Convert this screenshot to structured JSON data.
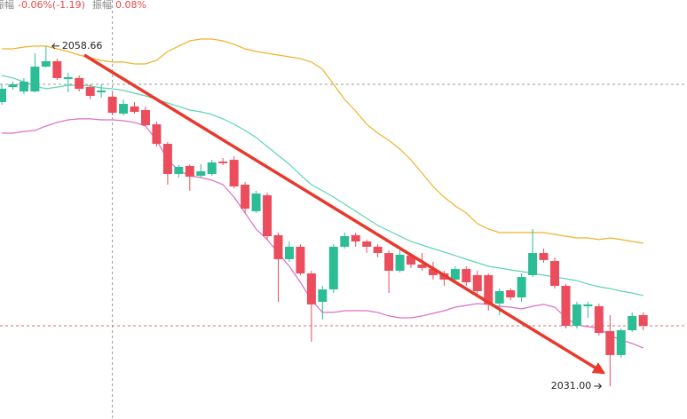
{
  "chart_data": {
    "type": "candlestick",
    "header": [
      {
        "name": "振幅",
        "value": "-0.06%(-1.19)"
      },
      {
        "name": "振幅",
        "value": "0.08%"
      }
    ],
    "ylim": [
      2028.33,
      2062.41
    ],
    "up_color": "#2dbd96",
    "down_color": "#ec4d5d",
    "open": [
      2054.11,
      2055.33,
      2054.97,
      2054.97,
      2056.99,
      2057.43,
      2055.98,
      2056.06,
      2055.33,
      2054.9,
      2054.54,
      2053.17,
      2053.75,
      2053.46,
      2052.3,
      2050.71,
      2048.26,
      2048.91,
      2048.11,
      2048.26,
      2049.27,
      2049.41,
      2047.39,
      2045.23,
      2046.53,
      2043.28,
      2041.33,
      2042.34,
      2040.17,
      2037.86,
      2038.87,
      2042.34,
      2043.28,
      2042.77,
      2042.34,
      2041.83,
      2040.39,
      2041.62,
      2040.89,
      2040.53,
      2040.17,
      2039.67,
      2040.53,
      2040.03,
      2040.03,
      2037.72,
      2038.8,
      2038.22,
      2040.03,
      2041.83,
      2041.18,
      2039.16,
      2035.91,
      2037.5,
      2037.5,
      2035.48,
      2033.53,
      2035.55,
      2036.78
    ],
    "high": [
      2055.55,
      2055.77,
      2056.06,
      2058.08,
      2058.66,
      2057.64,
      2056.49,
      2056.27,
      2055.55,
      2055.55,
      2054.9,
      2054.32,
      2054.11,
      2053.75,
      2052.52,
      2050.86,
      2048.98,
      2049.05,
      2049.05,
      2049.41,
      2049.56,
      2049.7,
      2047.61,
      2046.89,
      2046.74,
      2043.49,
      2042.77,
      2042.55,
      2040.39,
      2039.16,
      2042.55,
      2043.49,
      2043.49,
      2042.92,
      2042.55,
      2042.05,
      2042.05,
      2041.83,
      2041.83,
      2041.11,
      2040.39,
      2040.75,
      2040.75,
      2040.39,
      2040.17,
      2038.94,
      2038.94,
      2040.17,
      2043.78,
      2042.19,
      2041.47,
      2039.31,
      2037.86,
      2037.86,
      2037.72,
      2036.78,
      2035.7,
      2037.0,
      2037.0
    ],
    "low": [
      2053.89,
      2055.12,
      2054.76,
      2054.9,
      2056.92,
      2055.91,
      2054.9,
      2054.97,
      2054.32,
      2054.47,
      2053.02,
      2053.02,
      2053.17,
      2052.09,
      2050.5,
      2047.39,
      2047.97,
      2046.89,
      2047.97,
      2048.11,
      2048.98,
      2047.1,
      2045.08,
      2045.08,
      2042.92,
      2037.86,
      2041.11,
      2040.03,
      2034.61,
      2036.42,
      2038.58,
      2042.19,
      2042.34,
      2041.83,
      2041.47,
      2038.58,
      2040.24,
      2040.61,
      2040.39,
      2039.67,
      2039.16,
      2039.45,
      2039.16,
      2038.44,
      2037.14,
      2036.78,
      2038.01,
      2037.86,
      2039.88,
      2041.04,
      2038.94,
      2035.7,
      2035.7,
      2036.56,
      2035.12,
      2031.0,
      2033.31,
      2035.41,
      2035.55
    ],
    "close": [
      2055.19,
      2055.55,
      2055.77,
      2056.99,
      2057.43,
      2056.06,
      2056.13,
      2055.19,
      2054.61,
      2055.05,
      2053.24,
      2053.96,
      2053.31,
      2052.23,
      2050.71,
      2048.26,
      2048.84,
      2048.04,
      2048.48,
      2049.2,
      2049.13,
      2047.25,
      2045.44,
      2046.67,
      2043.2,
      2041.33,
      2042.34,
      2040.17,
      2037.65,
      2038.87,
      2042.34,
      2043.2,
      2042.77,
      2042.34,
      2041.83,
      2040.39,
      2041.69,
      2040.89,
      2040.61,
      2040.03,
      2039.67,
      2040.53,
      2039.45,
      2038.73,
      2037.65,
      2038.73,
      2038.22,
      2039.88,
      2041.83,
      2041.26,
      2039.16,
      2035.91,
      2037.65,
      2037.65,
      2035.33,
      2033.53,
      2035.55,
      2036.71,
      2035.91
    ],
    "lines": [
      {
        "color": "#f0b22a",
        "values": [
          2058.44,
          2058.44,
          2058.58,
          2058.66,
          2058.66,
          2058.44,
          2058.22,
          2057.93,
          2057.72,
          2057.5,
          2057.36,
          2057.36,
          2057.21,
          2057.21,
          2057.5,
          2058.22,
          2058.66,
          2059.09,
          2059.23,
          2059.23,
          2059.09,
          2058.8,
          2058.44,
          2058.22,
          2058.08,
          2057.93,
          2057.79,
          2057.64,
          2057.36,
          2056.78,
          2055.55,
          2054.32,
          2053.38,
          2052.3,
          2051.58,
          2051.0,
          2050.28,
          2049.41,
          2048.33,
          2047.25,
          2046.38,
          2045.66,
          2045.08,
          2044.22,
          2043.78,
          2043.49,
          2043.49,
          2043.49,
          2043.49,
          2043.49,
          2043.35,
          2043.2,
          2043.06,
          2043.06,
          2042.92,
          2043.06,
          2042.92,
          2042.77,
          2042.63
        ]
      },
      {
        "color": "#5fd4b5",
        "values": [
          2056.27,
          2056.06,
          2055.77,
          2055.41,
          2055.19,
          2055.33,
          2055.48,
          2055.48,
          2055.41,
          2055.26,
          2055.19,
          2055.05,
          2054.83,
          2054.61,
          2054.32,
          2054.03,
          2053.75,
          2053.46,
          2053.31,
          2053.1,
          2052.74,
          2052.3,
          2051.8,
          2051.22,
          2050.5,
          2049.77,
          2049.05,
          2048.19,
          2047.39,
          2046.89,
          2046.38,
          2045.8,
          2045.23,
          2044.65,
          2044.07,
          2043.64,
          2043.2,
          2042.77,
          2042.48,
          2042.19,
          2041.91,
          2041.62,
          2041.33,
          2041.04,
          2040.75,
          2040.61,
          2040.46,
          2040.32,
          2040.17,
          2040.03,
          2039.88,
          2039.74,
          2039.59,
          2039.31,
          2039.09,
          2038.94,
          2038.73,
          2038.58,
          2038.37
        ]
      },
      {
        "color": "#da6fc9",
        "values": [
          2051.58,
          2051.58,
          2051.72,
          2051.8,
          2052.16,
          2052.45,
          2052.66,
          2052.74,
          2052.74,
          2052.66,
          2052.66,
          2052.59,
          2052.45,
          2052.16,
          2051.0,
          2049.41,
          2048.55,
          2048.11,
          2047.97,
          2047.75,
          2047.39,
          2046.38,
          2045.08,
          2043.78,
          2042.92,
          2041.83,
          2040.75,
          2039.45,
          2038.01,
          2037.0,
          2037.0,
          2037.14,
          2037.14,
          2037.14,
          2037.0,
          2036.71,
          2036.56,
          2036.56,
          2036.71,
          2036.92,
          2037.14,
          2037.43,
          2037.57,
          2037.72,
          2037.65,
          2037.5,
          2037.43,
          2037.28,
          2037.5,
          2037.65,
          2037.43,
          2036.56,
          2035.98,
          2035.84,
          2035.7,
          2035.12,
          2034.76,
          2034.47,
          2034.11
        ]
      }
    ],
    "crosshair": {
      "index": 10,
      "price": 2055.55
    },
    "last_price_line": 2035.91,
    "high_label": 2058.66,
    "low_label": {
      "value": 2031,
      "label": "2031.00"
    },
    "trend_arrow": {
      "from": [
        7.46,
        2057.93
      ],
      "to": [
        54.4,
        2032.09
      ],
      "color": "#e8392c"
    }
  }
}
